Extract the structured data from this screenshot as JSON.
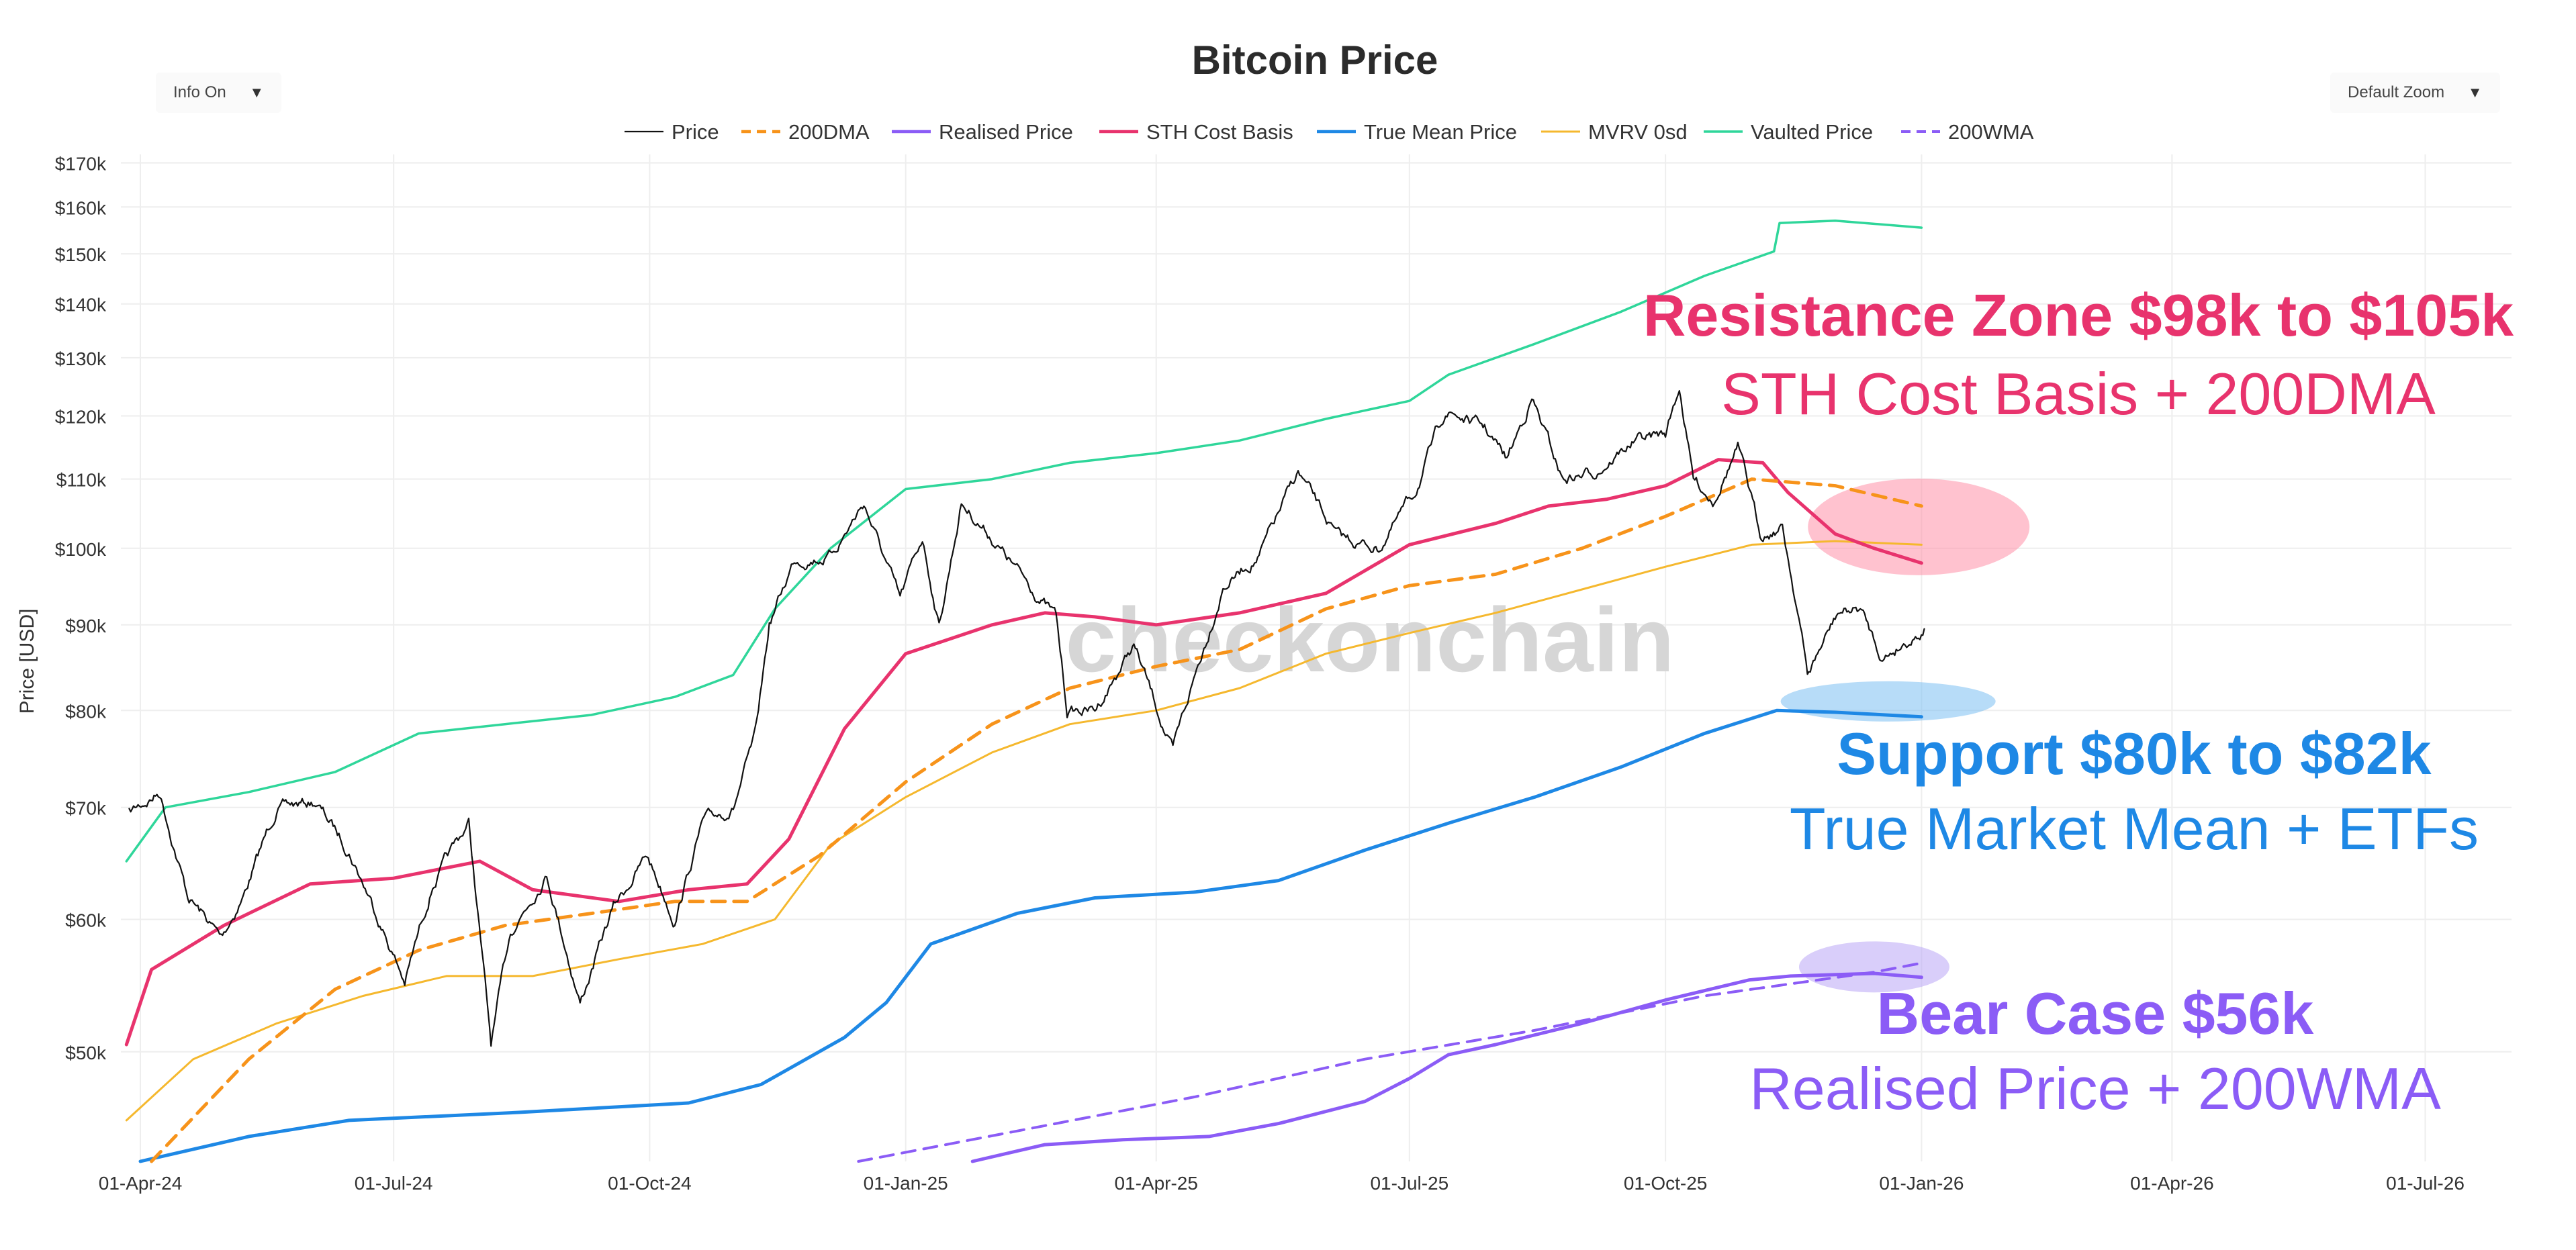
{
  "controls": {
    "info_label": "Info On",
    "zoom_label": "Default Zoom",
    "caret": "▼"
  },
  "colors": {
    "price": "#111111",
    "dma200": "#f7931a",
    "realised": "#8b5cf6",
    "sth": "#e8336d",
    "truemean": "#1e88e5",
    "mvrv": "#f5b82e",
    "vaulted": "#2fd69a",
    "wma200": "#8b5cf6",
    "grid": "#eeeeee",
    "watermark": "#d6d6d6"
  },
  "watermark": "checkonchain",
  "chart_data": {
    "type": "line",
    "title": "Bitcoin Price",
    "xlabel": "",
    "ylabel": "Price [USD]",
    "yscale": "log",
    "ylim": [
      43000,
      172000
    ],
    "xlim": [
      "2024-03-25",
      "2026-08-01"
    ],
    "x_ticks": [
      {
        "date": "2024-04-01",
        "label": "01-Apr-24"
      },
      {
        "date": "2024-07-01",
        "label": "01-Jul-24"
      },
      {
        "date": "2024-10-01",
        "label": "01-Oct-24"
      },
      {
        "date": "2025-01-01",
        "label": "01-Jan-25"
      },
      {
        "date": "2025-04-01",
        "label": "01-Apr-25"
      },
      {
        "date": "2025-07-01",
        "label": "01-Jul-25"
      },
      {
        "date": "2025-10-01",
        "label": "01-Oct-25"
      },
      {
        "date": "2026-01-01",
        "label": "01-Jan-26"
      },
      {
        "date": "2026-04-01",
        "label": "01-Apr-26"
      },
      {
        "date": "2026-07-01",
        "label": "01-Jul-26"
      }
    ],
    "y_ticks": [
      {
        "value": 50000,
        "label": "$50k"
      },
      {
        "value": 60000,
        "label": "$60k"
      },
      {
        "value": 70000,
        "label": "$70k"
      },
      {
        "value": 80000,
        "label": "$80k"
      },
      {
        "value": 90000,
        "label": "$90k"
      },
      {
        "value": 100000,
        "label": "$100k"
      },
      {
        "value": 110000,
        "label": "$110k"
      },
      {
        "value": 120000,
        "label": "$120k"
      },
      {
        "value": 130000,
        "label": "$130k"
      },
      {
        "value": 140000,
        "label": "$140k"
      },
      {
        "value": 150000,
        "label": "$150k"
      },
      {
        "value": 160000,
        "label": "$160k"
      },
      {
        "value": 170000,
        "label": "$170k"
      }
    ],
    "legend": {
      "position": "top-center"
    },
    "series": [
      {
        "name": "Price",
        "color": "#111111",
        "dash": "solid",
        "width": 2.2,
        "jagged": true,
        "points": [
          [
            "2024-03-28",
            69500
          ],
          [
            "2024-04-08",
            71500
          ],
          [
            "2024-04-18",
            62000
          ],
          [
            "2024-04-30",
            58500
          ],
          [
            "2024-05-08",
            62000
          ],
          [
            "2024-05-20",
            70000
          ],
          [
            "2024-06-03",
            70500
          ],
          [
            "2024-06-15",
            66000
          ],
          [
            "2024-06-25",
            60500
          ],
          [
            "2024-07-05",
            55000
          ],
          [
            "2024-07-15",
            63000
          ],
          [
            "2024-07-28",
            68500
          ],
          [
            "2024-08-05",
            50500
          ],
          [
            "2024-08-12",
            59000
          ],
          [
            "2024-08-25",
            64000
          ],
          [
            "2024-09-06",
            53500
          ],
          [
            "2024-09-18",
            61000
          ],
          [
            "2024-09-30",
            65500
          ],
          [
            "2024-10-10",
            60000
          ],
          [
            "2024-10-20",
            68500
          ],
          [
            "2024-10-31",
            70000
          ],
          [
            "2024-11-08",
            77000
          ],
          [
            "2024-11-13",
            90000
          ],
          [
            "2024-11-22",
            98500
          ],
          [
            "2024-12-05",
            99000
          ],
          [
            "2024-12-17",
            106500
          ],
          [
            "2024-12-30",
            93000
          ],
          [
            "2025-01-07",
            101500
          ],
          [
            "2025-01-13",
            90000
          ],
          [
            "2025-01-21",
            106500
          ],
          [
            "2025-01-31",
            102000
          ],
          [
            "2025-02-10",
            97000
          ],
          [
            "2025-02-24",
            91000
          ],
          [
            "2025-02-28",
            80000
          ],
          [
            "2025-03-10",
            80000
          ],
          [
            "2025-03-24",
            87500
          ],
          [
            "2025-04-07",
            75500
          ],
          [
            "2025-04-15",
            84000
          ],
          [
            "2025-04-25",
            95000
          ],
          [
            "2025-05-08",
            99000
          ],
          [
            "2025-05-22",
            111000
          ],
          [
            "2025-06-05",
            101500
          ],
          [
            "2025-06-20",
            100000
          ],
          [
            "2025-07-03",
            108000
          ],
          [
            "2025-07-14",
            121000
          ],
          [
            "2025-07-28",
            118000
          ],
          [
            "2025-08-05",
            113000
          ],
          [
            "2025-08-14",
            123000
          ],
          [
            "2025-08-25",
            110000
          ],
          [
            "2025-09-05",
            111000
          ],
          [
            "2025-09-20",
            116000
          ],
          [
            "2025-10-01",
            117000
          ],
          [
            "2025-10-06",
            125000
          ],
          [
            "2025-10-11",
            110000
          ],
          [
            "2025-10-18",
            107000
          ],
          [
            "2025-10-27",
            115000
          ],
          [
            "2025-11-04",
            102000
          ],
          [
            "2025-11-12",
            103000
          ],
          [
            "2025-11-18",
            91000
          ],
          [
            "2025-11-21",
            84000
          ],
          [
            "2025-12-02",
            91500
          ],
          [
            "2025-12-10",
            92000
          ],
          [
            "2025-12-18",
            86000
          ],
          [
            "2025-12-24",
            87500
          ],
          [
            "2026-01-02",
            89500
          ]
        ]
      },
      {
        "name": "200DMA",
        "color": "#f7931a",
        "dash": "dash",
        "width": 5,
        "points": [
          [
            "2024-04-05",
            43000
          ],
          [
            "2024-05-10",
            49500
          ],
          [
            "2024-06-10",
            54500
          ],
          [
            "2024-07-10",
            57500
          ],
          [
            "2024-08-10",
            59500
          ],
          [
            "2024-09-10",
            60500
          ],
          [
            "2024-10-10",
            61500
          ],
          [
            "2024-11-05",
            61500
          ],
          [
            "2024-12-01",
            65500
          ],
          [
            "2025-01-01",
            72500
          ],
          [
            "2025-02-01",
            78500
          ],
          [
            "2025-03-01",
            82500
          ],
          [
            "2025-04-01",
            85000
          ],
          [
            "2025-05-01",
            87000
          ],
          [
            "2025-06-01",
            92000
          ],
          [
            "2025-07-01",
            95000
          ],
          [
            "2025-08-01",
            96500
          ],
          [
            "2025-09-01",
            100000
          ],
          [
            "2025-10-01",
            104500
          ],
          [
            "2025-11-01",
            110000
          ],
          [
            "2025-12-01",
            109000
          ],
          [
            "2026-01-01",
            106000
          ]
        ]
      },
      {
        "name": "Realised Price",
        "color": "#8b5cf6",
        "dash": "solid",
        "width": 5,
        "points": [
          [
            "2025-01-25",
            43000
          ],
          [
            "2025-02-20",
            44000
          ],
          [
            "2025-03-20",
            44300
          ],
          [
            "2025-04-20",
            44500
          ],
          [
            "2025-05-15",
            45300
          ],
          [
            "2025-06-15",
            46700
          ],
          [
            "2025-07-01",
            48200
          ],
          [
            "2025-07-15",
            49800
          ],
          [
            "2025-08-01",
            50500
          ],
          [
            "2025-09-01",
            52000
          ],
          [
            "2025-10-01",
            53700
          ],
          [
            "2025-10-31",
            55200
          ],
          [
            "2025-11-15",
            55500
          ],
          [
            "2025-12-15",
            55700
          ],
          [
            "2026-01-01",
            55400
          ]
        ]
      },
      {
        "name": "STH Cost Basis",
        "color": "#e8336d",
        "dash": "solid",
        "width": 5,
        "points": [
          [
            "2024-03-27",
            50500
          ],
          [
            "2024-04-05",
            56000
          ],
          [
            "2024-05-01",
            59500
          ],
          [
            "2024-06-01",
            63000
          ],
          [
            "2024-07-01",
            63500
          ],
          [
            "2024-08-01",
            65000
          ],
          [
            "2024-08-20",
            62500
          ],
          [
            "2024-09-20",
            61500
          ],
          [
            "2024-10-15",
            62500
          ],
          [
            "2024-11-05",
            63000
          ],
          [
            "2024-11-20",
            67000
          ],
          [
            "2024-12-10",
            78000
          ],
          [
            "2025-01-01",
            86500
          ],
          [
            "2025-02-01",
            90000
          ],
          [
            "2025-02-20",
            91500
          ],
          [
            "2025-03-10",
            91000
          ],
          [
            "2025-04-01",
            90000
          ],
          [
            "2025-05-01",
            91500
          ],
          [
            "2025-06-01",
            94000
          ],
          [
            "2025-07-01",
            100500
          ],
          [
            "2025-08-01",
            103500
          ],
          [
            "2025-08-20",
            106000
          ],
          [
            "2025-09-10",
            107000
          ],
          [
            "2025-10-01",
            109000
          ],
          [
            "2025-10-20",
            113000
          ],
          [
            "2025-11-05",
            112500
          ],
          [
            "2025-11-14",
            108000
          ],
          [
            "2025-12-01",
            102000
          ],
          [
            "2025-12-15",
            100000
          ],
          [
            "2026-01-01",
            98000
          ]
        ]
      },
      {
        "name": "True Mean Price",
        "color": "#1e88e5",
        "dash": "solid",
        "width": 5,
        "points": [
          [
            "2024-04-01",
            43000
          ],
          [
            "2024-05-10",
            44500
          ],
          [
            "2024-06-15",
            45500
          ],
          [
            "2024-08-15",
            46000
          ],
          [
            "2024-10-15",
            46600
          ],
          [
            "2024-11-10",
            47800
          ],
          [
            "2024-12-10",
            51000
          ],
          [
            "2024-12-25",
            53500
          ],
          [
            "2025-01-10",
            58000
          ],
          [
            "2025-02-10",
            60500
          ],
          [
            "2025-03-10",
            61800
          ],
          [
            "2025-04-15",
            62300
          ],
          [
            "2025-05-15",
            63300
          ],
          [
            "2025-06-15",
            66000
          ],
          [
            "2025-07-15",
            68500
          ],
          [
            "2025-08-15",
            71000
          ],
          [
            "2025-09-15",
            74000
          ],
          [
            "2025-10-15",
            77500
          ],
          [
            "2025-11-10",
            80000
          ],
          [
            "2025-12-01",
            79800
          ],
          [
            "2026-01-01",
            79300
          ]
        ]
      },
      {
        "name": "MVRV 0sd",
        "color": "#f5b82e",
        "dash": "solid",
        "width": 3,
        "points": [
          [
            "2024-03-27",
            45500
          ],
          [
            "2024-04-20",
            49500
          ],
          [
            "2024-05-20",
            52000
          ],
          [
            "2024-06-20",
            54000
          ],
          [
            "2024-07-20",
            55500
          ],
          [
            "2024-08-20",
            55500
          ],
          [
            "2024-09-20",
            56800
          ],
          [
            "2024-10-20",
            58000
          ],
          [
            "2024-11-15",
            60000
          ],
          [
            "2024-12-05",
            66500
          ],
          [
            "2025-01-01",
            71000
          ],
          [
            "2025-02-01",
            75500
          ],
          [
            "2025-03-01",
            78500
          ],
          [
            "2025-04-01",
            80000
          ],
          [
            "2025-05-01",
            82500
          ],
          [
            "2025-06-01",
            86500
          ],
          [
            "2025-07-01",
            89000
          ],
          [
            "2025-08-01",
            91500
          ],
          [
            "2025-09-01",
            94500
          ],
          [
            "2025-10-01",
            97500
          ],
          [
            "2025-11-01",
            100500
          ],
          [
            "2025-12-01",
            101000
          ],
          [
            "2026-01-01",
            100500
          ]
        ]
      },
      {
        "name": "Vaulted Price",
        "color": "#2fd69a",
        "dash": "solid",
        "width": 3.5,
        "points": [
          [
            "2024-03-27",
            65000
          ],
          [
            "2024-04-10",
            70000
          ],
          [
            "2024-05-10",
            71500
          ],
          [
            "2024-06-10",
            73500
          ],
          [
            "2024-07-10",
            77500
          ],
          [
            "2024-08-10",
            78500
          ],
          [
            "2024-09-10",
            79500
          ],
          [
            "2024-10-10",
            81500
          ],
          [
            "2024-10-31",
            84000
          ],
          [
            "2024-11-15",
            92000
          ],
          [
            "2024-12-05",
            100000
          ],
          [
            "2025-01-01",
            108500
          ],
          [
            "2025-02-01",
            110000
          ],
          [
            "2025-03-01",
            112500
          ],
          [
            "2025-04-01",
            114000
          ],
          [
            "2025-05-01",
            116000
          ],
          [
            "2025-06-01",
            119500
          ],
          [
            "2025-07-01",
            122500
          ],
          [
            "2025-07-15",
            127000
          ],
          [
            "2025-08-15",
            132500
          ],
          [
            "2025-09-15",
            138500
          ],
          [
            "2025-10-15",
            145500
          ],
          [
            "2025-11-09",
            150500
          ],
          [
            "2025-11-11",
            156500
          ],
          [
            "2025-12-01",
            157000
          ],
          [
            "2026-01-01",
            155500
          ]
        ]
      },
      {
        "name": "200WMA",
        "color": "#8b5cf6",
        "dash": "dash",
        "width": 4,
        "points": [
          [
            "2024-12-15",
            43000
          ],
          [
            "2025-02-15",
            45000
          ],
          [
            "2025-04-15",
            47000
          ],
          [
            "2025-06-15",
            49500
          ],
          [
            "2025-08-15",
            51500
          ],
          [
            "2025-10-15",
            54000
          ],
          [
            "2025-12-15",
            55800
          ],
          [
            "2026-01-01",
            56500
          ]
        ]
      }
    ],
    "annotations": [
      {
        "title": "Resistance Zone $98k to $105k",
        "subtitle": "STH Cost Basis + 200DMA",
        "color": "#e8336d"
      },
      {
        "title": "Support $80k to $82k",
        "subtitle": "True Market Mean + ETFs",
        "color": "#1e88e5"
      },
      {
        "title": "Bear Case $56k",
        "subtitle": "Realised Price + 200WMA",
        "color": "#8b5cf6"
      }
    ],
    "highlight_zones": [
      {
        "name": "resistance-zone-highlight",
        "date": "2025-12-31",
        "value": 103000,
        "color": "#ff8fa8"
      },
      {
        "name": "support-zone-highlight",
        "date": "2025-12-20",
        "value": 81000,
        "color": "#7cc0f2"
      },
      {
        "name": "bear-case-zone-highlight",
        "date": "2025-12-15",
        "value": 56200,
        "color": "#b9a6f5"
      }
    ]
  }
}
